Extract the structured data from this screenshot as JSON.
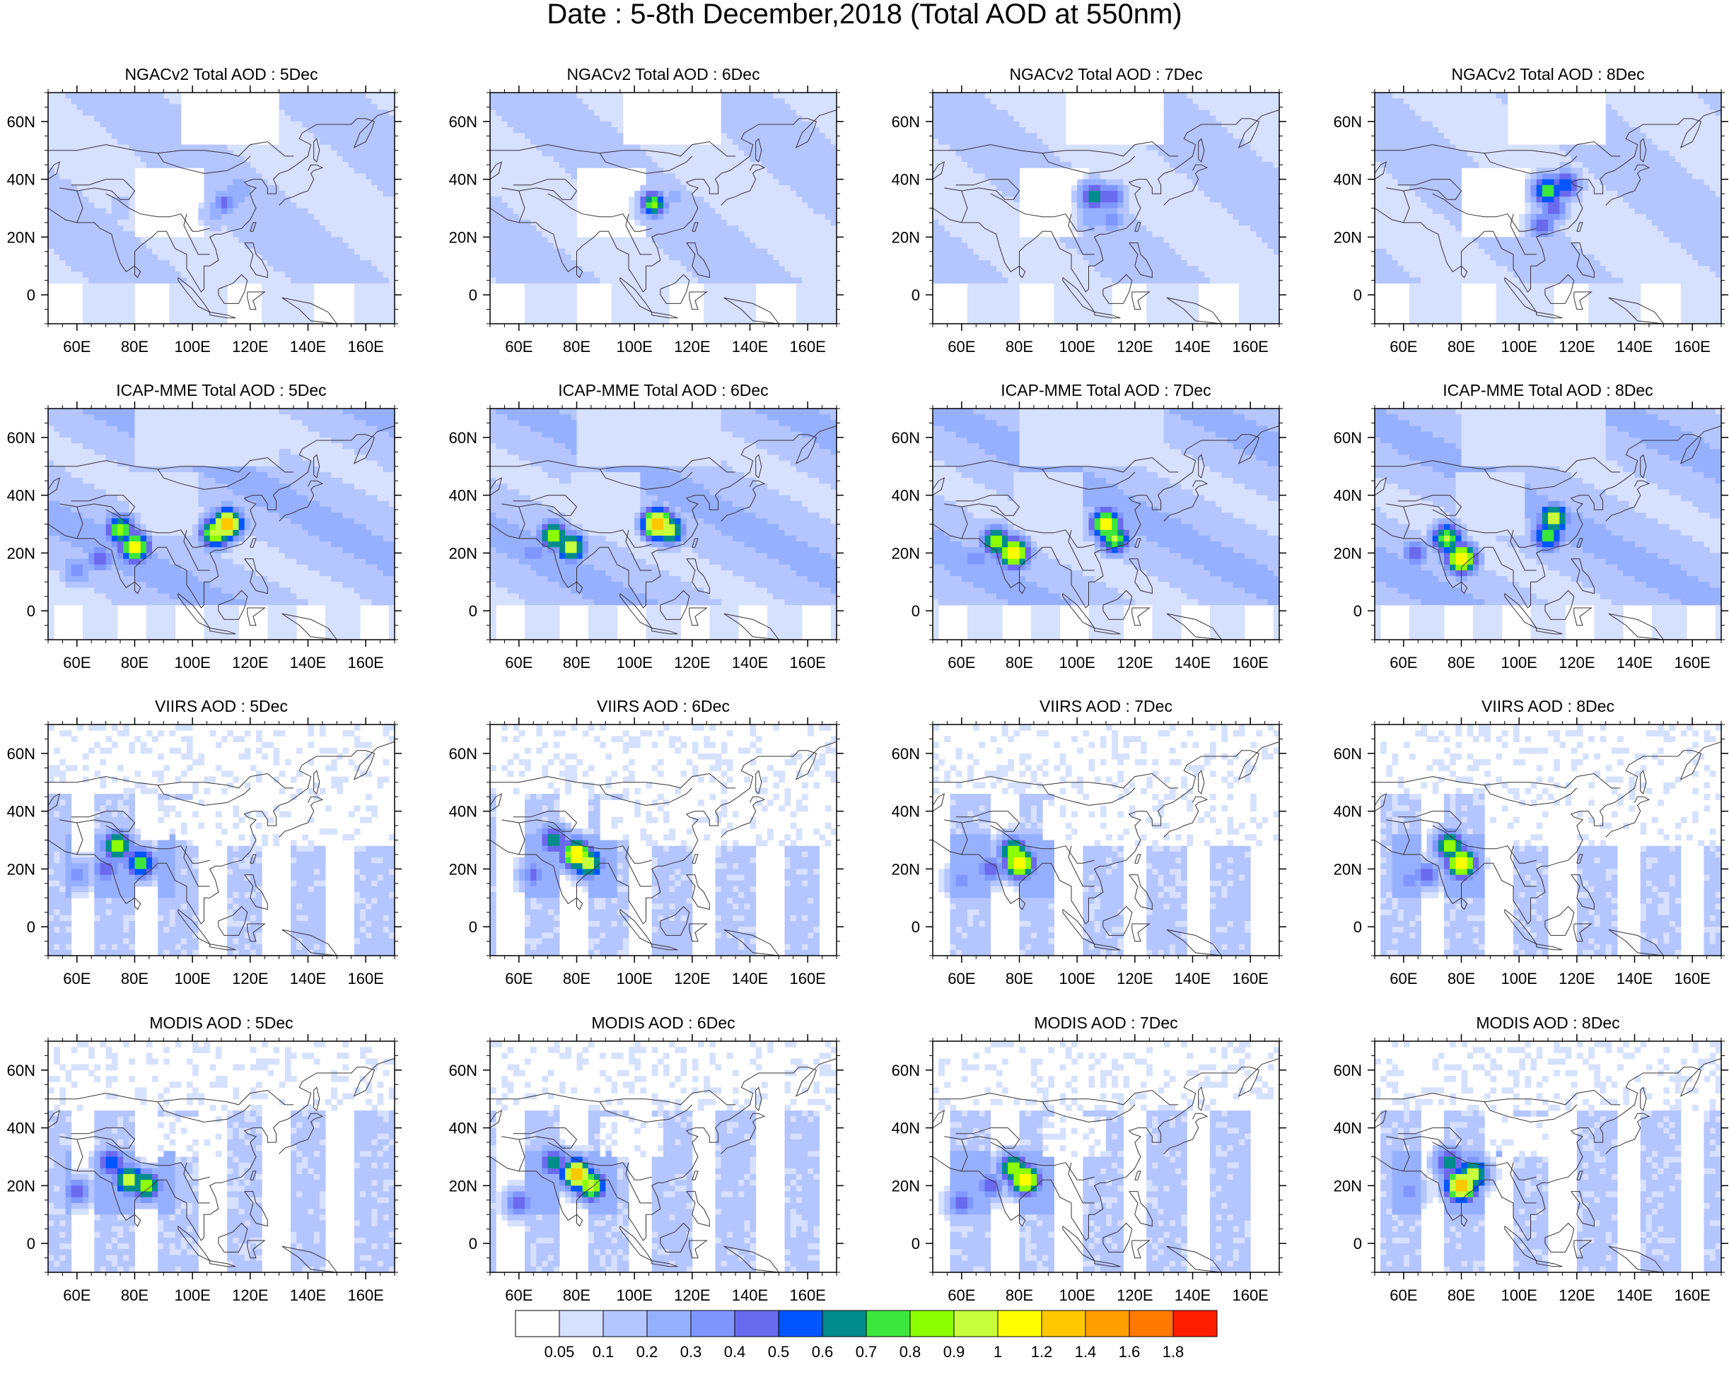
{
  "title": "Date : 5-8th December,2018 (Total AOD at 550nm)",
  "rows": [
    {
      "name": "NGACv2",
      "panels": [
        "NGACv2 Total AOD : 5Dec",
        "NGACv2 Total AOD : 6Dec",
        "NGACv2 Total AOD : 7Dec",
        "NGACv2 Total AOD : 8Dec"
      ]
    },
    {
      "name": "ICAP-MME",
      "panels": [
        "ICAP-MME Total AOD : 5Dec",
        "ICAP-MME Total AOD : 6Dec",
        "ICAP-MME Total AOD : 7Dec",
        "ICAP-MME Total AOD : 8Dec"
      ]
    },
    {
      "name": "VIIRS",
      "panels": [
        "VIIRS AOD : 5Dec",
        "VIIRS AOD : 6Dec",
        "VIIRS AOD : 7Dec",
        "VIIRS AOD : 8Dec"
      ]
    },
    {
      "name": "MODIS",
      "panels": [
        "MODIS AOD : 5Dec",
        "MODIS AOD : 6Dec",
        "MODIS AOD : 7Dec",
        "MODIS AOD : 8Dec"
      ]
    }
  ],
  "map_extent": {
    "lon": [
      50,
      170
    ],
    "lat": [
      -10,
      70
    ]
  },
  "lon_ticks": [
    "60E",
    "80E",
    "100E",
    "120E",
    "140E",
    "160E"
  ],
  "lon_values": [
    60,
    80,
    100,
    120,
    140,
    160
  ],
  "lat_ticks": [
    "60N",
    "40N",
    "20N",
    "0"
  ],
  "lat_values": [
    60,
    40,
    20,
    0
  ],
  "colorbar": {
    "colors": [
      "#ffffff",
      "#d6e0ff",
      "#b4c5ff",
      "#96b0ff",
      "#8096ff",
      "#6a6aee",
      "#0055ff",
      "#008c8c",
      "#3ce63c",
      "#8cff00",
      "#c8ff3c",
      "#ffff00",
      "#ffc800",
      "#ffa000",
      "#ff7800",
      "#ff1e00"
    ],
    "labels": [
      "0.05",
      "0.1",
      "0.2",
      "0.3",
      "0.4",
      "0.5",
      "0.6",
      "0.7",
      "0.8",
      "0.9",
      "1",
      "1.2",
      "1.4",
      "1.6",
      "1.8"
    ]
  }
}
